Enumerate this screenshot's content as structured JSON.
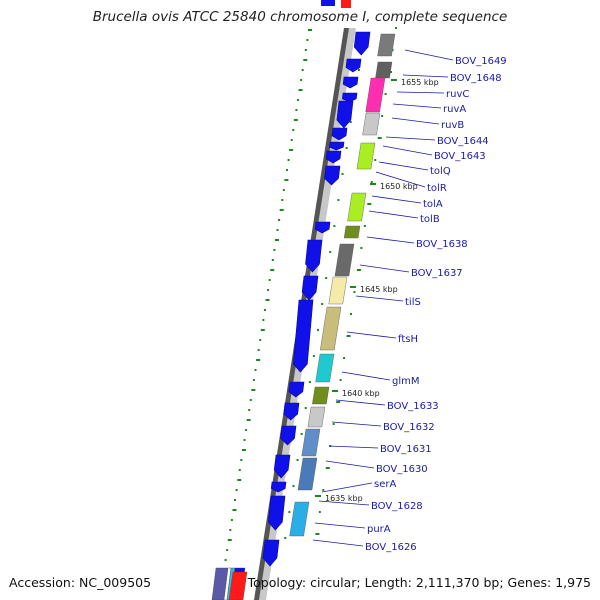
{
  "title": "Brucella ovis ATCC 25840 chromosome I, complete sequence",
  "footer": {
    "accession": "Accession: NC_009505",
    "summary": "Topology: circular; Length: 2,111,370 bp; Genes: 1,975"
  },
  "colors": {
    "cds_forward": "#1010e8",
    "label_text": "#1a1aa8",
    "tick": "#1a8a1a",
    "backbone_light": "#c8c8c8",
    "backbone_dark": "#555555"
  },
  "scale_labels": [
    "1655 kbp",
    "1650 kbp",
    "1645 kbp",
    "1640 kbp",
    "1635 kbp"
  ],
  "gene_labels": [
    "BOV_1649",
    "BOV_1648",
    "ruvC",
    "ruvA",
    "ruvB",
    "BOV_1644",
    "BOV_1643",
    "tolQ",
    "tolR",
    "tolA",
    "tolB",
    "BOV_1638",
    "BOV_1637",
    "tilS",
    "ftsH",
    "glmM",
    "BOV_1633",
    "BOV_1632",
    "BOV_1631",
    "BOV_1630",
    "serA",
    "BOV_1628",
    "purA",
    "BOV_1626"
  ],
  "feature_colors": [
    "#7a7a7a",
    "#606060",
    "#ff2db0",
    "#c8c8c8",
    "#a8ee22",
    "#a8ee22",
    "#6f8e1e",
    "#6a6a6a",
    "#f5eaa8",
    "#c8bd7a",
    "#1ecad0",
    "#6f8e1e",
    "#c8c8c8",
    "#5f8ec8",
    "#4a7ab8",
    "#2aaee8"
  ]
}
